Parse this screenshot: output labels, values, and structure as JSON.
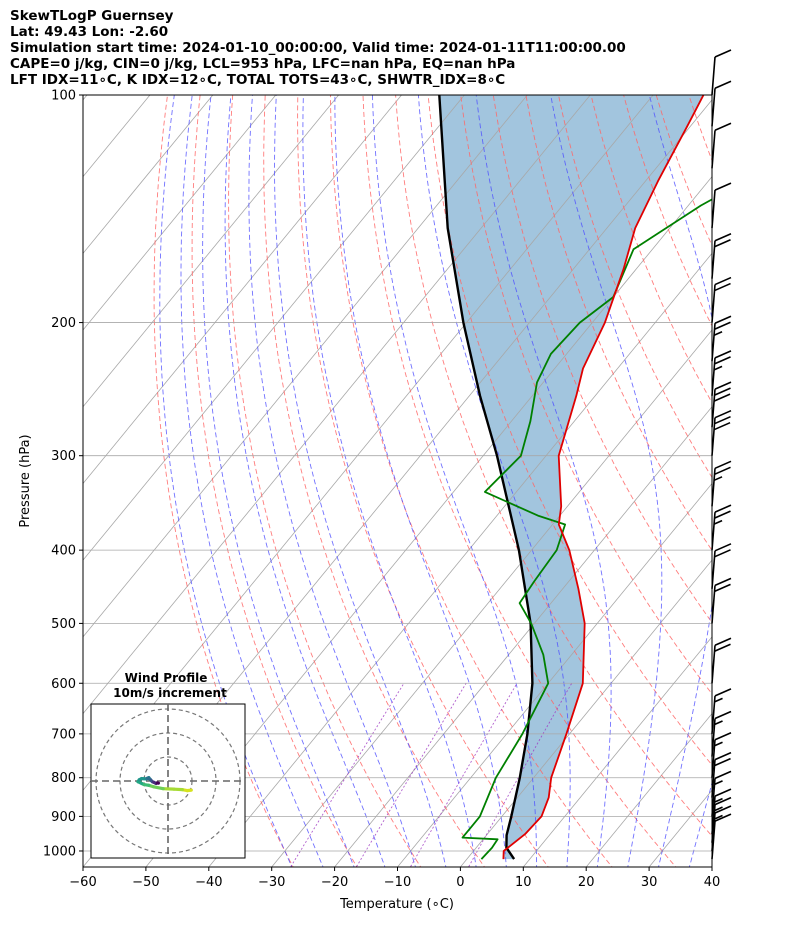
{
  "header": {
    "line1": "SkewTLogP Guernsey",
    "line2": "Lat: 49.43   Lon: -2.60",
    "line3": "Simulation start time: 2024-01-10_00:00:00, Valid time: 2024-01-11T11:00:00.00",
    "line4": "CAPE=0 j/kg, CIN=0 j/kg, LCL=953 hPa, LFC=nan hPa, EQ=nan hPa",
    "line5": "LFT IDX=11∘C, K IDX=12∘C, TOTAL TOTS=43∘C, SHWTR_IDX=8∘C"
  },
  "chart_data": {
    "type": "line",
    "chart_kind": "skew-T log-p diagram",
    "xlabel": "Temperature (∘C)",
    "ylabel": "Pressure (hPa)",
    "xlim": [
      -60,
      40
    ],
    "ylim": [
      1050,
      100
    ],
    "y_scale": "log",
    "x_ticks": [
      -60,
      -50,
      -40,
      -30,
      -20,
      -10,
      0,
      10,
      20,
      30,
      40
    ],
    "x_tick_labels": [
      "−60",
      "−50",
      "−40",
      "−30",
      "−20",
      "−10",
      "0",
      "10",
      "20",
      "30",
      "40"
    ],
    "y_ticks": [
      100,
      200,
      300,
      400,
      500,
      600,
      700,
      800,
      900,
      1000
    ],
    "y_tick_labels": [
      "100",
      "200",
      "300",
      "400",
      "500",
      "600",
      "700",
      "800",
      "900",
      "1000"
    ],
    "grid": true,
    "series": [
      {
        "role": "temperature",
        "color": "#e00000",
        "points": [
          [
            1025,
            5.8
          ],
          [
            1000,
            4.8
          ],
          [
            950,
            6.0
          ],
          [
            900,
            6.3
          ],
          [
            850,
            5.0
          ],
          [
            800,
            2.8
          ],
          [
            700,
            -0.5
          ],
          [
            600,
            -4.5
          ],
          [
            500,
            -12.0
          ],
          [
            450,
            -17.5
          ],
          [
            400,
            -24.0
          ],
          [
            370,
            -29.0
          ],
          [
            350,
            -31.0
          ],
          [
            300,
            -38.0
          ],
          [
            250,
            -43.0
          ],
          [
            230,
            -45.5
          ],
          [
            200,
            -48.0
          ],
          [
            170,
            -52.0
          ],
          [
            150,
            -55.5
          ],
          [
            130,
            -58.0
          ],
          [
            110,
            -60.5
          ],
          [
            100,
            -62.0
          ]
        ]
      },
      {
        "role": "dewpoint",
        "color": "#008000",
        "points": [
          [
            1025,
            2.3
          ],
          [
            990,
            2.5
          ],
          [
            965,
            2.3
          ],
          [
            960,
            -3.5
          ],
          [
            930,
            -3.5
          ],
          [
            900,
            -3.5
          ],
          [
            800,
            -6.0
          ],
          [
            700,
            -7.5
          ],
          [
            600,
            -10.0
          ],
          [
            550,
            -14.5
          ],
          [
            500,
            -20.5
          ],
          [
            470,
            -25.0
          ],
          [
            440,
            -25.5
          ],
          [
            400,
            -26.0
          ],
          [
            370,
            -28.0
          ],
          [
            360,
            -33.5
          ],
          [
            335,
            -45.0
          ],
          [
            300,
            -44.0
          ],
          [
            270,
            -47.0
          ],
          [
            240,
            -51.0
          ],
          [
            220,
            -52.5
          ],
          [
            200,
            -52.0
          ],
          [
            185,
            -50.0
          ],
          [
            160,
            -53.0
          ],
          [
            140,
            -48.0
          ],
          [
            120,
            -40.0
          ],
          [
            100,
            -33.0
          ]
        ]
      },
      {
        "role": "parcel profile",
        "color": "#000000",
        "points": [
          [
            1025,
            7.5
          ],
          [
            990,
            4.8
          ],
          [
            953,
            3.2
          ],
          [
            900,
            1.5
          ],
          [
            800,
            -2.2
          ],
          [
            700,
            -6.7
          ],
          [
            600,
            -12.5
          ],
          [
            500,
            -20.6
          ],
          [
            400,
            -32.0
          ],
          [
            300,
            -47.8
          ],
          [
            250,
            -58.3
          ],
          [
            200,
            -70.5
          ],
          [
            150,
            -85.3
          ],
          [
            100,
            -104.0
          ]
        ]
      }
    ],
    "wind_barbs": [
      {
        "p": 1025,
        "flags": 0,
        "full": 1,
        "half": 0
      },
      {
        "p": 1000,
        "flags": 0,
        "full": 1,
        "half": 1
      },
      {
        "p": 975,
        "flags": 0,
        "full": 1,
        "half": 1
      },
      {
        "p": 950,
        "flags": 0,
        "full": 1,
        "half": 1
      },
      {
        "p": 900,
        "flags": 0,
        "full": 1,
        "half": 1
      },
      {
        "p": 850,
        "flags": 0,
        "full": 2,
        "half": 0
      },
      {
        "p": 800,
        "flags": 0,
        "full": 1,
        "half": 1
      },
      {
        "p": 750,
        "flags": 0,
        "full": 1,
        "half": 1
      },
      {
        "p": 700,
        "flags": 0,
        "full": 1,
        "half": 1
      },
      {
        "p": 600,
        "flags": 0,
        "full": 2,
        "half": 0
      },
      {
        "p": 500,
        "flags": 0,
        "full": 2,
        "half": 0
      },
      {
        "p": 450,
        "flags": 0,
        "full": 2,
        "half": 0
      },
      {
        "p": 400,
        "flags": 0,
        "full": 2,
        "half": 1
      },
      {
        "p": 350,
        "flags": 0,
        "full": 2,
        "half": 1
      },
      {
        "p": 300,
        "flags": 0,
        "full": 3,
        "half": 0
      },
      {
        "p": 275,
        "flags": 0,
        "full": 3,
        "half": 0
      },
      {
        "p": 250,
        "flags": 0,
        "full": 2,
        "half": 1
      },
      {
        "p": 225,
        "flags": 0,
        "full": 2,
        "half": 1
      },
      {
        "p": 200,
        "flags": 0,
        "full": 2,
        "half": 0
      },
      {
        "p": 175,
        "flags": 0,
        "full": 2,
        "half": 0
      },
      {
        "p": 150,
        "flags": 0,
        "full": 1,
        "half": 0
      },
      {
        "p": 125,
        "flags": 0,
        "full": 1,
        "half": 0
      },
      {
        "p": 110,
        "flags": 0,
        "full": 1,
        "half": 0
      },
      {
        "p": 100,
        "flags": 0,
        "full": 1,
        "half": 0
      }
    ],
    "hodograph": {
      "title_line1": "Wind Profile",
      "title_line2": "10m/s increment",
      "ring_increment_ms": 10,
      "points": [
        [
          9.7,
          -3.8
        ],
        [
          8.0,
          -4.0
        ],
        [
          6.0,
          -3.6
        ],
        [
          2.5,
          -3.4
        ],
        [
          -2.0,
          -3.2
        ],
        [
          -6.0,
          -2.4
        ],
        [
          -8.0,
          -1.8
        ],
        [
          -10.0,
          -1.5
        ],
        [
          -11.0,
          -1.0
        ],
        [
          -12.5,
          -0.3
        ],
        [
          -12.0,
          0.5
        ],
        [
          -11.0,
          1.0
        ],
        [
          -9.0,
          0.9
        ],
        [
          -8.0,
          1.4
        ],
        [
          -8.5,
          1.2
        ],
        [
          -7.5,
          0.8
        ],
        [
          -7.0,
          0.2
        ],
        [
          -6.5,
          -0.3
        ],
        [
          -6.0,
          -0.5
        ],
        [
          -5.0,
          -1.0
        ],
        [
          -4.5,
          -0.8
        ],
        [
          -4.0,
          -0.9
        ]
      ]
    }
  },
  "colors": {
    "temperature": "#e00000",
    "dewpoint": "#008000",
    "parcel": "#000000",
    "cape_shading": "#a2c5de",
    "dry_adiabats": "#ff6666",
    "moist_adiabats": "#4d4dff",
    "mixing_ratio_lines": "#9e38c2",
    "isotherms": "#a8a8a8"
  }
}
